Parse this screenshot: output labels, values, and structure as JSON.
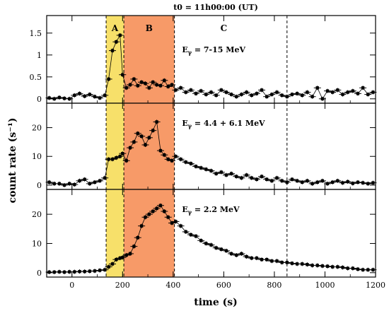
{
  "chart_data": {
    "type": "scatter",
    "title": "t0 = 11h00:00 (UT)",
    "xlabel": "time (s)",
    "ylabel": "count rate (s⁻¹)",
    "xlim": [
      -100,
      1200
    ],
    "x_ticks": [
      0,
      200,
      400,
      600,
      800,
      1000,
      1200
    ],
    "x_tick_labels": [
      "0",
      "200",
      "400",
      "600",
      "800",
      "1000",
      "1200"
    ],
    "regions": [
      {
        "label": "A",
        "x0": 135,
        "x1": 205,
        "color": "#f7e06a"
      },
      {
        "label": "B",
        "x0": 205,
        "x1": 405,
        "color": "#f79a68"
      },
      {
        "label": "C",
        "x0": 405,
        "x1": 1200,
        "color": "#ffffff"
      }
    ],
    "vertical_lines": [
      135,
      205,
      405,
      850
    ],
    "panels": [
      {
        "annotation_main": "E",
        "annotation_sub": "γ",
        "annotation_rest": " = 7-15 MeV",
        "ylim": [
          -0.1,
          1.9
        ],
        "y_ticks": [
          0,
          0.5,
          1,
          1.5
        ],
        "y_tick_labels": [
          "0",
          "0.5",
          "1",
          "1.5"
        ],
        "series": [
          {
            "x": [
              -90,
              -70,
              -50,
              -30,
              -10,
              10,
              30,
              50,
              70,
              90,
              110,
              130,
              145,
              160,
              175,
              190,
              200,
              215,
              230,
              245,
              260,
              275,
              290,
              305,
              320,
              335,
              350,
              365,
              380,
              395,
              410,
              430,
              450,
              470,
              490,
              510,
              530,
              550,
              570,
              590,
              610,
              630,
              650,
              670,
              690,
              710,
              730,
              750,
              770,
              790,
              810,
              830,
              850,
              870,
              890,
              910,
              930,
              950,
              970,
              990,
              1010,
              1030,
              1050,
              1070,
              1090,
              1110,
              1130,
              1150,
              1170,
              1190
            ],
            "y": [
              0.02,
              0.0,
              0.03,
              0.01,
              0.0,
              0.08,
              0.12,
              0.06,
              0.1,
              0.05,
              0.02,
              0.08,
              0.45,
              1.1,
              1.3,
              1.45,
              0.55,
              0.25,
              0.32,
              0.45,
              0.3,
              0.38,
              0.35,
              0.25,
              0.38,
              0.32,
              0.3,
              0.42,
              0.28,
              0.32,
              0.2,
              0.25,
              0.15,
              0.2,
              0.12,
              0.18,
              0.1,
              0.15,
              0.08,
              0.2,
              0.15,
              0.1,
              0.05,
              0.1,
              0.15,
              0.08,
              0.12,
              0.2,
              0.05,
              0.1,
              0.15,
              0.08,
              0.05,
              0.1,
              0.12,
              0.08,
              0.15,
              0.05,
              0.25,
              0.0,
              0.18,
              0.15,
              0.2,
              0.1,
              0.15,
              0.18,
              0.12,
              0.25,
              0.1,
              0.15
            ]
          }
        ]
      },
      {
        "annotation_main": "E",
        "annotation_sub": "γ",
        "annotation_rest": " = 4.4 + 6.1 MeV",
        "ylim": [
          -1.5,
          28.5
        ],
        "y_ticks": [
          0,
          10,
          20
        ],
        "y_tick_labels": [
          "0",
          "10",
          "20"
        ],
        "series": [
          {
            "x": [
              -90,
              -70,
              -50,
              -30,
              -10,
              10,
              30,
              50,
              70,
              90,
              110,
              130,
              145,
              160,
              175,
              190,
              200,
              215,
              230,
              245,
              260,
              275,
              290,
              305,
              320,
              335,
              350,
              365,
              380,
              395,
              410,
              430,
              450,
              470,
              490,
              510,
              530,
              550,
              570,
              590,
              610,
              630,
              650,
              670,
              690,
              710,
              730,
              750,
              770,
              790,
              810,
              830,
              850,
              870,
              890,
              910,
              930,
              950,
              970,
              990,
              1010,
              1030,
              1050,
              1070,
              1090,
              1110,
              1130,
              1150,
              1170,
              1190
            ],
            "y": [
              1.0,
              0.5,
              0.5,
              0.0,
              0.5,
              0.2,
              1.5,
              2.0,
              0.5,
              1.0,
              1.5,
              2.5,
              9.0,
              9.0,
              9.5,
              10.0,
              11.0,
              8.5,
              13.0,
              15.0,
              18.0,
              17.0,
              14.0,
              16.5,
              19.0,
              22.0,
              12.0,
              10.5,
              9.0,
              8.5,
              10.0,
              9.0,
              8.0,
              7.5,
              6.5,
              6.0,
              5.5,
              5.0,
              4.0,
              4.5,
              3.5,
              4.0,
              3.0,
              2.5,
              3.5,
              2.5,
              2.0,
              3.0,
              2.0,
              1.5,
              2.5,
              1.5,
              1.0,
              2.0,
              1.5,
              1.0,
              1.5,
              0.5,
              1.0,
              1.5,
              0.5,
              1.0,
              1.5,
              0.8,
              1.2,
              0.6,
              1.0,
              0.8,
              0.5,
              0.8
            ]
          }
        ]
      },
      {
        "annotation_main": "E",
        "annotation_sub": "γ",
        "annotation_rest": " = 2.2 MeV",
        "ylim": [
          -1.5,
          28.5
        ],
        "y_ticks": [
          0,
          10,
          20
        ],
        "y_tick_labels": [
          "0",
          "10",
          "20"
        ],
        "series": [
          {
            "x": [
              -90,
              -70,
              -50,
              -30,
              -10,
              10,
              30,
              50,
              70,
              90,
              110,
              130,
              145,
              160,
              175,
              190,
              200,
              215,
              230,
              245,
              260,
              275,
              290,
              305,
              320,
              335,
              350,
              365,
              380,
              395,
              410,
              430,
              450,
              470,
              490,
              510,
              530,
              550,
              570,
              590,
              610,
              630,
              650,
              670,
              690,
              710,
              730,
              750,
              770,
              790,
              810,
              830,
              850,
              870,
              890,
              910,
              930,
              950,
              970,
              990,
              1010,
              1030,
              1050,
              1070,
              1090,
              1110,
              1130,
              1150,
              1170,
              1190
            ],
            "y": [
              0.2,
              0.2,
              0.3,
              0.2,
              0.3,
              0.3,
              0.4,
              0.4,
              0.5,
              0.6,
              0.8,
              1.0,
              2.0,
              3.0,
              4.5,
              5.0,
              5.2,
              6.0,
              6.5,
              9.0,
              12.0,
              16.0,
              19.0,
              20.0,
              21.0,
              22.0,
              23.0,
              21.0,
              19.0,
              17.0,
              17.5,
              16.0,
              14.0,
              13.0,
              12.5,
              11.0,
              10.0,
              9.5,
              8.5,
              8.0,
              7.5,
              6.5,
              6.0,
              6.5,
              5.5,
              5.0,
              5.0,
              4.5,
              4.5,
              4.0,
              4.0,
              3.5,
              3.5,
              3.2,
              3.0,
              3.0,
              2.8,
              2.5,
              2.5,
              2.3,
              2.2,
              2.0,
              2.0,
              1.8,
              1.5,
              1.5,
              1.2,
              1.0,
              1.0,
              1.0
            ]
          }
        ]
      }
    ]
  }
}
